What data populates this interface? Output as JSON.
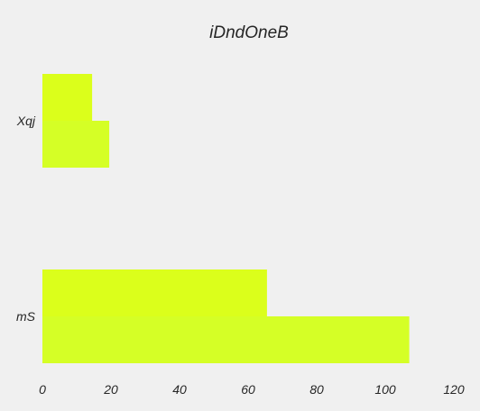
{
  "chart_data": {
    "type": "bar",
    "orientation": "horizontal",
    "title": "iDndOneB",
    "xlabel": "",
    "ylabel": "",
    "categories": [
      "Xqj",
      "mS"
    ],
    "series": [
      {
        "values": [
          14.5,
          65.5
        ],
        "color": "#dbff1b"
      },
      {
        "values": [
          19.5,
          107
        ],
        "color": "#d5ff26"
      }
    ],
    "xlim": [
      0,
      120
    ],
    "xticks": [
      0,
      20,
      40,
      60,
      80,
      100,
      120
    ],
    "grid": false,
    "legend": "none",
    "background": "#f0f0f0"
  }
}
